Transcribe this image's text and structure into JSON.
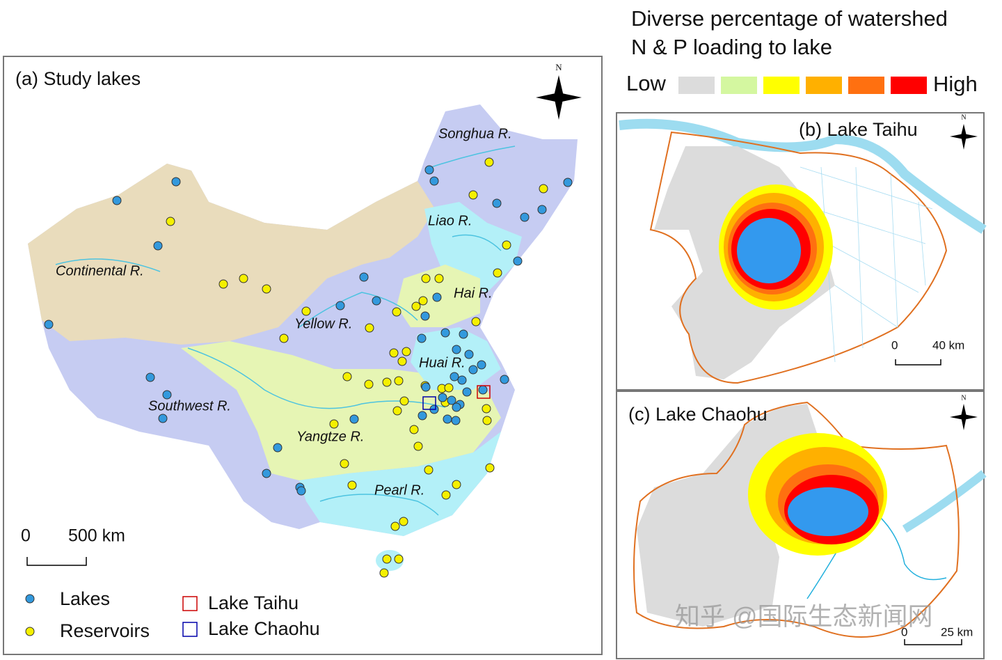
{
  "legend": {
    "title_lines": [
      "Diverse percentage of watershed",
      "N & P loading to lake"
    ],
    "low": "Low",
    "high": "High",
    "colors": [
      "#dcdcdc",
      "#d4f7a0",
      "#ffff00",
      "#ffb000",
      "#ff7010",
      "#ff0000"
    ]
  },
  "panel_a": {
    "title": "(a) Study lakes",
    "north": "N",
    "rivers": [
      "Songhua R.",
      "Liao R.",
      "Continental R.",
      "Hai R.",
      "Yellow R.",
      "Huai R.",
      "Southwest R.",
      "Yangtze R.",
      "Pearl R."
    ],
    "scale": {
      "zero": "0",
      "length": "500 km"
    },
    "legend": {
      "lakes": "Lakes",
      "reservoirs": "Reservoirs",
      "taihu": "Lake Taihu",
      "chaohu": "Lake Chaohu"
    }
  },
  "panel_b": {
    "title": "(b) Lake Taihu",
    "north": "N",
    "scale": {
      "zero": "0",
      "length": "40 km"
    }
  },
  "panel_c": {
    "title": "(c) Lake Chaohu",
    "north": "N",
    "scale": {
      "zero": "0",
      "length": "25 km"
    }
  },
  "watermark": "知乎 @国际生态新闻网"
}
